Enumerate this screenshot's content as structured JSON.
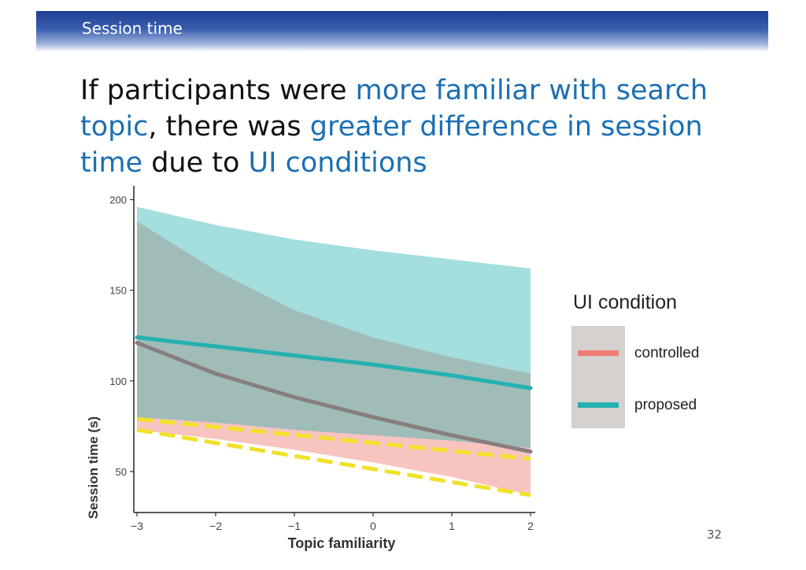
{
  "header": {
    "title": "Session time"
  },
  "headline": {
    "p1": "If participants were ",
    "h1": "more familiar with search topic",
    "p2": ", there was ",
    "h2": "greater difference in session time",
    "p3": " due to ",
    "h3": "UI conditions"
  },
  "chart_data": {
    "type": "line",
    "xlabel": "Topic familiarity",
    "ylabel": "Session time (s)",
    "xlim": [
      -3,
      2
    ],
    "ylim": [
      30,
      205
    ],
    "x_ticks": [
      -3,
      -2,
      -1,
      0,
      1,
      2
    ],
    "y_ticks": [
      50,
      100,
      150,
      200
    ],
    "grid": false,
    "legend_placement": "right",
    "x": [
      -3,
      -2,
      -1,
      0,
      1,
      2
    ],
    "series": [
      {
        "name": "proposed",
        "color": "#25b1b1",
        "values": [
          124,
          119,
          114,
          109,
          103,
          96
        ],
        "ci_lower": [
          80,
          77,
          73,
          70,
          67,
          63
        ],
        "ci_upper": [
          196,
          186,
          178,
          172,
          167,
          162
        ]
      },
      {
        "name": "controlled",
        "color": "#ef7c72",
        "values": [
          121,
          104,
          91,
          80,
          70,
          61
        ],
        "ci_lower": [
          73,
          68,
          62,
          55,
          47,
          37
        ],
        "ci_upper": [
          188,
          161,
          139,
          124,
          113,
          104
        ]
      }
    ],
    "annotation": {
      "type": "yellow-dashed-lines",
      "color": "#f0e12a",
      "lines": [
        [
          79,
          57
        ],
        [
          73,
          37
        ]
      ]
    },
    "legend": {
      "title": "UI condition",
      "entries": [
        {
          "label": "controlled",
          "color": "#ef7c72"
        },
        {
          "label": "proposed",
          "color": "#25b1b1"
        }
      ]
    }
  },
  "page_number": "32"
}
